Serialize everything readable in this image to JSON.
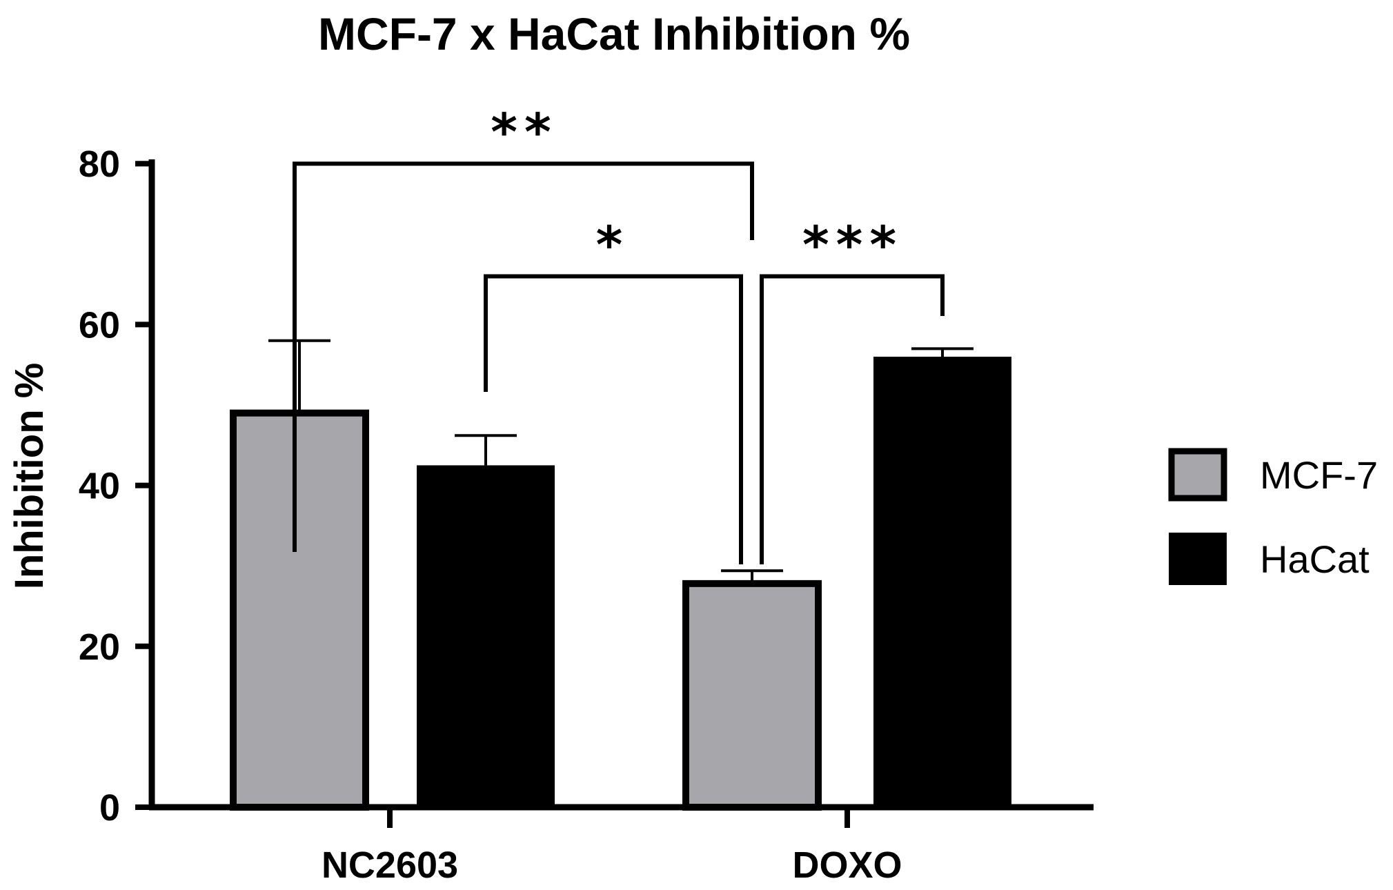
{
  "chart_data": {
    "type": "bar",
    "title": "MCF-7 x HaCat Inhibition %",
    "xlabel": "",
    "ylabel": "Inhibition %",
    "ylim": [
      0,
      80
    ],
    "yticks": [
      0,
      20,
      40,
      60,
      80
    ],
    "categories": [
      "NC2603",
      "DOXO"
    ],
    "series": [
      {
        "name": "MCF-7",
        "color": "#a7a6ab",
        "values": [
          49.0,
          27.8
        ],
        "errors": [
          9.0,
          1.6
        ]
      },
      {
        "name": "HaCat",
        "color": "#000000",
        "values": [
          42.5,
          56.0
        ],
        "errors": [
          3.7,
          1.0
        ]
      }
    ],
    "significance": [
      {
        "from": "NC2603 / MCF-7",
        "to": "DOXO / MCF-7",
        "label": "**"
      },
      {
        "from": "NC2603 / HaCat",
        "to": "DOXO / MCF-7",
        "label": "*"
      },
      {
        "from": "DOXO / MCF-7",
        "to": "DOXO / HaCat",
        "label": "***"
      }
    ],
    "legend_position": "right",
    "grid": false
  }
}
